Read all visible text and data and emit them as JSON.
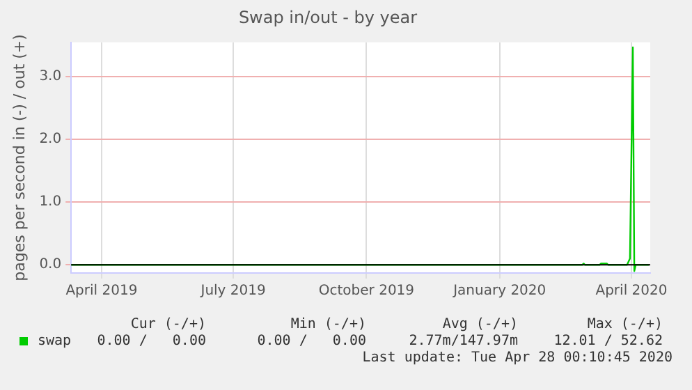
{
  "chart_data": {
    "type": "line",
    "title": "Swap in/out - by year",
    "ylabel": "pages per second in (-) / out (+)",
    "x": [
      "2019-03-26",
      "2020-03-13",
      "2020-03-14",
      "2020-03-15",
      "2020-03-25",
      "2020-03-26",
      "2020-03-30",
      "2020-03-31",
      "2020-04-13",
      "2020-04-14",
      "2020-04-15",
      "2020-04-17",
      "2020-04-18",
      "2020-04-19",
      "2020-04-28"
    ],
    "series": [
      {
        "name": "swap",
        "color": "#00cc00",
        "values": [
          0,
          0,
          0.02,
          0,
          0,
          0.02,
          0.02,
          0,
          0,
          0.05,
          0.1,
          3.47,
          -0.1,
          0,
          0
        ]
      }
    ],
    "xlim": [
      "2019-03-26",
      "2020-04-29"
    ],
    "xticks": [
      {
        "value": "2019-04-16",
        "label": "April 2019"
      },
      {
        "value": "2019-07-16",
        "label": "July 2019"
      },
      {
        "value": "2019-10-16",
        "label": "October 2019"
      },
      {
        "value": "2020-01-16",
        "label": "January 2020"
      },
      {
        "value": "2020-04-16",
        "label": "April 2020"
      }
    ],
    "ylim": [
      -0.13,
      3.55
    ],
    "yticks": [
      {
        "value": 0,
        "label": "0.0"
      },
      {
        "value": 1,
        "label": "1.0"
      },
      {
        "value": 2,
        "label": "2.0"
      },
      {
        "value": 3,
        "label": "3.0"
      }
    ],
    "ref_lines": [
      {
        "axis": "y",
        "value": 0,
        "color": "#000000"
      }
    ],
    "grid": true,
    "legend": "bottom left",
    "marker": "none",
    "line_style": "solid",
    "annotations": [
      "Cur (-/+)",
      "Min (-/+)",
      "Avg (-/+)",
      "Max (-/+)",
      "0.00 /   0.00",
      "0.00 /   0.00",
      "2.77m/147.97m",
      "12.01 / 52.62",
      "Last update: Tue Apr 28 00:10:45 2020"
    ]
  }
}
